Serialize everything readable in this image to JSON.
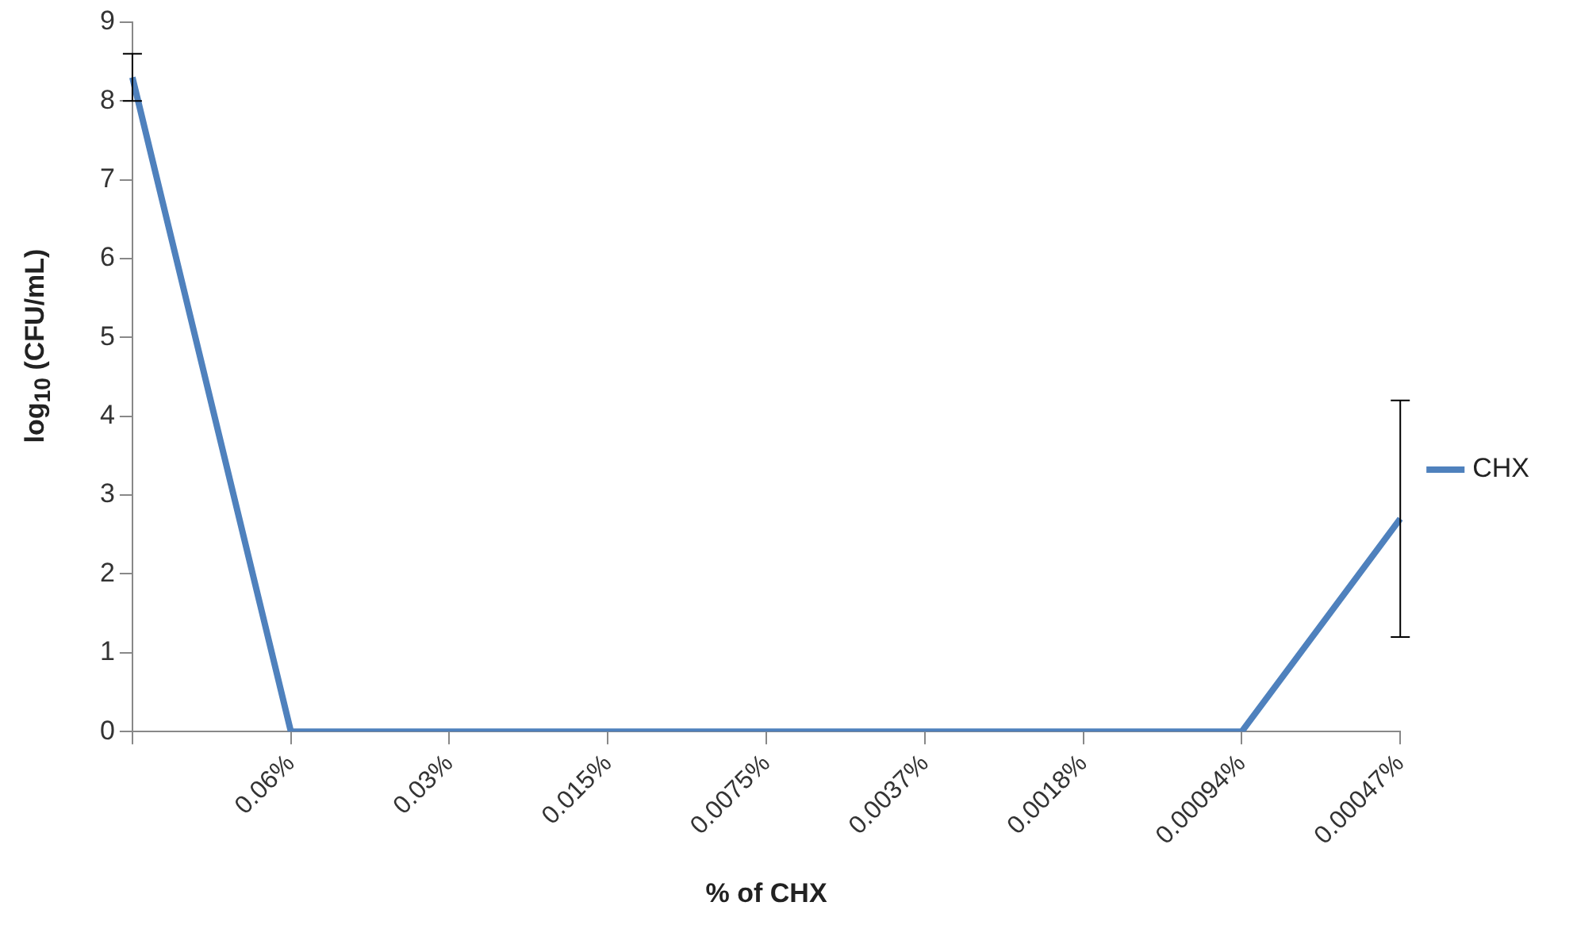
{
  "chart_data": {
    "type": "line",
    "xlabel": "% of CHX",
    "ylabel": "log$_{10}$ (CFU/mL)",
    "categories": [
      null,
      "0.06%",
      "0.03%",
      "0.015%",
      "0.0075%",
      "0.0037%",
      "0.0018%",
      "0.00094%",
      "0.00047%"
    ],
    "series": [
      {
        "name": "CHX",
        "color": "#4f81bd",
        "values": [
          8.3,
          0,
          0,
          0,
          0,
          0,
          0,
          0,
          2.7
        ],
        "errors": [
          0.3,
          null,
          null,
          null,
          null,
          null,
          null,
          null,
          1.5
        ]
      }
    ],
    "ylim": [
      0,
      9
    ],
    "yticks": [
      0,
      1,
      2,
      3,
      4,
      5,
      6,
      7,
      8,
      9
    ],
    "grid": false,
    "legend": "right",
    "marker": "none",
    "line_style": "solid"
  }
}
